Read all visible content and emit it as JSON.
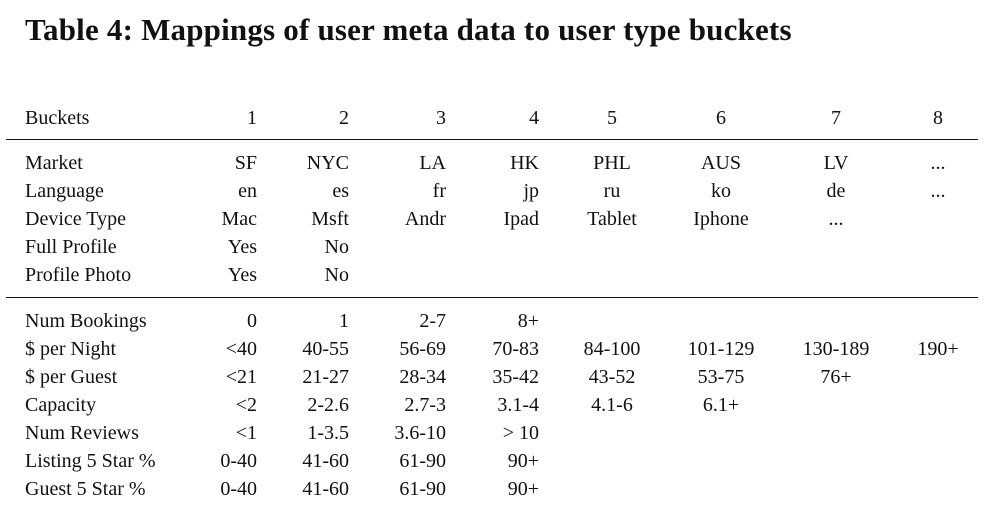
{
  "title": "Table 4: Mappings of user meta data to user type buckets",
  "header": [
    "Buckets",
    "1",
    "2",
    "3",
    "4",
    "5",
    "6",
    "7",
    "8"
  ],
  "section1": [
    [
      "Market",
      "SF",
      "NYC",
      "LA",
      "HK",
      "PHL",
      "AUS",
      "LV",
      "..."
    ],
    [
      "Language",
      "en",
      "es",
      "fr",
      "jp",
      "ru",
      "ko",
      "de",
      "..."
    ],
    [
      "Device Type",
      "Mac",
      "Msft",
      "Andr",
      "Ipad",
      "Tablet",
      "Iphone",
      "...",
      ""
    ],
    [
      "Full Profile",
      "Yes",
      "No",
      "",
      "",
      "",
      "",
      "",
      ""
    ],
    [
      "Profile Photo",
      "Yes",
      "No",
      "",
      "",
      "",
      "",
      "",
      ""
    ]
  ],
  "section2": [
    [
      "Num Bookings",
      "0",
      "1",
      "2-7",
      "8+",
      "",
      "",
      "",
      ""
    ],
    [
      "$ per Night",
      "<40",
      "40-55",
      "56-69",
      "70-83",
      "84-100",
      "101-129",
      "130-189",
      "190+"
    ],
    [
      "$ per Guest",
      "<21",
      "21-27",
      "28-34",
      "35-42",
      "43-52",
      "53-75",
      "76+",
      ""
    ],
    [
      "Capacity",
      "<2",
      "2-2.6",
      "2.7-3",
      "3.1-4",
      "4.1-6",
      "6.1+",
      "",
      ""
    ],
    [
      "Num Reviews",
      "<1",
      "1-3.5",
      "3.6-10",
      "> 10",
      "",
      "",
      "",
      ""
    ],
    [
      "Listing 5 Star %",
      "0-40",
      "41-60",
      "61-90",
      "90+",
      "",
      "",
      "",
      ""
    ],
    [
      "Guest 5 Star %",
      "0-40",
      "41-60",
      "61-90",
      "90+",
      "",
      "",
      "",
      ""
    ]
  ]
}
